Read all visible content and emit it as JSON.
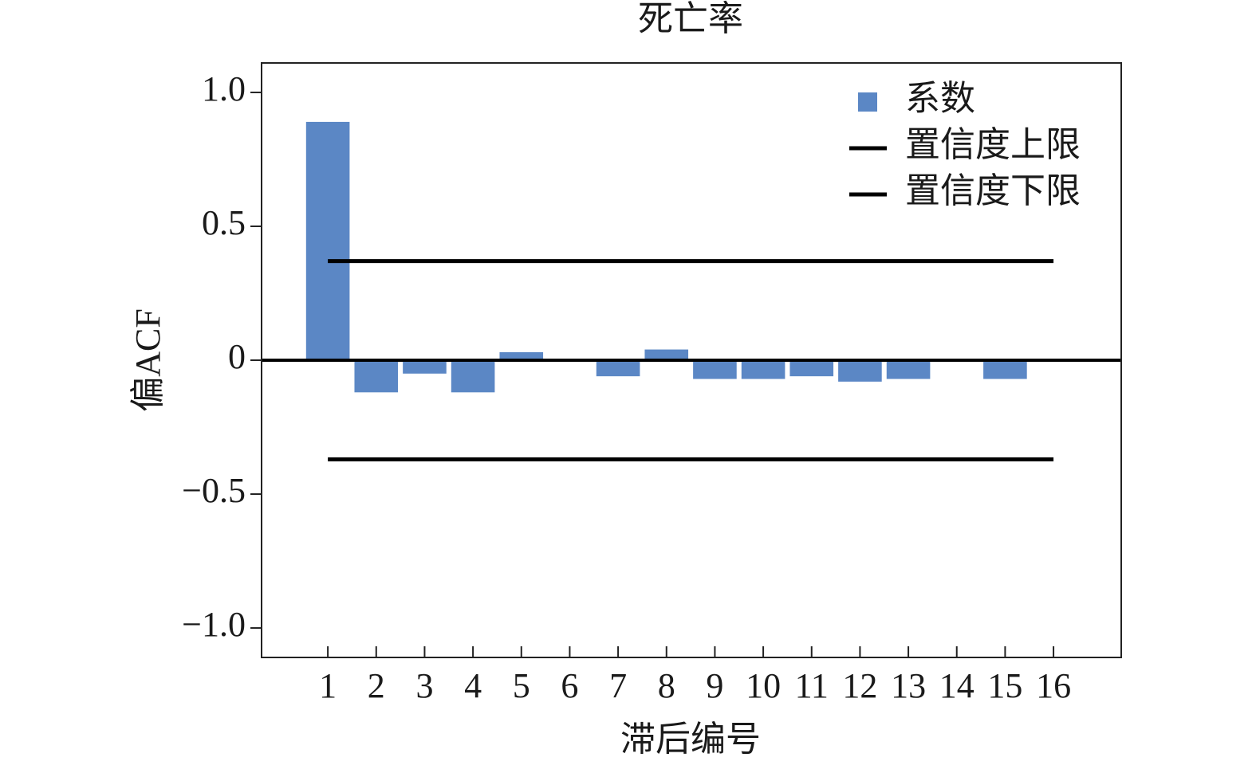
{
  "chart_data": {
    "type": "bar",
    "title": "死亡率",
    "xlabel": "滞后编号",
    "ylabel": "偏ACF",
    "x": [
      1,
      2,
      3,
      4,
      5,
      6,
      7,
      8,
      9,
      10,
      11,
      12,
      13,
      14,
      15,
      16
    ],
    "series": [
      {
        "name": "系数",
        "type": "bar",
        "color": "#5b87c5",
        "values": [
          0.89,
          -0.12,
          -0.05,
          -0.12,
          0.03,
          0,
          -0.06,
          0.04,
          -0.07,
          -0.07,
          -0.06,
          -0.08,
          -0.07,
          0,
          -0.07,
          0
        ]
      },
      {
        "name": "置信度上限",
        "type": "line",
        "color": "#000000",
        "values": [
          0.37,
          0.37,
          0.37,
          0.37,
          0.37,
          0.37,
          0.37,
          0.37,
          0.37,
          0.37,
          0.37,
          0.37,
          0.37,
          0.37,
          0.37,
          0.37
        ]
      },
      {
        "name": "置信度下限",
        "type": "line",
        "color": "#000000",
        "values": [
          -0.37,
          -0.37,
          -0.37,
          -0.37,
          -0.37,
          -0.37,
          -0.37,
          -0.37,
          -0.37,
          -0.37,
          -0.37,
          -0.37,
          -0.37,
          -0.37,
          -0.37,
          -0.37
        ]
      }
    ],
    "axhline": 0,
    "xlim": [
      -0.37,
      17.4
    ],
    "ylim": [
      -1.11,
      1.11
    ],
    "xticks": [
      1,
      2,
      3,
      4,
      5,
      6,
      7,
      8,
      9,
      10,
      11,
      12,
      13,
      14,
      15,
      16
    ],
    "yticks": [
      {
        "value": -1,
        "label": "−1.0"
      },
      {
        "value": -0.5,
        "label": "−0.5"
      },
      0,
      0.5,
      {
        "value": 1,
        "label": "1.0"
      }
    ],
    "legend": "upper right"
  }
}
